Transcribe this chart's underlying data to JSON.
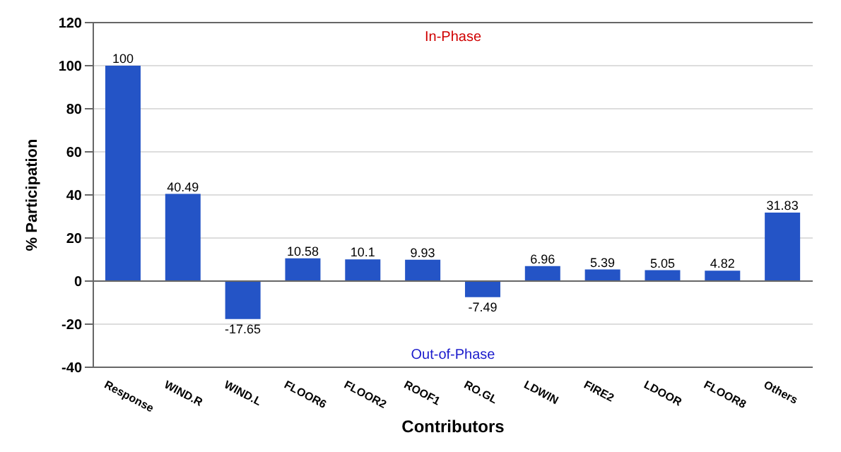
{
  "chart_data": {
    "type": "bar",
    "xlabel": "Contributors",
    "ylabel": "% Participation",
    "categories": [
      "Response",
      "WIND.R",
      "WIND.L",
      "FLOOR6",
      "FLOOR2",
      "ROOF1",
      "RO.GL",
      "LDWIN",
      "FIRE2",
      "LDOOR",
      "FLOOR8",
      "Others"
    ],
    "values": [
      100,
      40.49,
      -17.65,
      10.58,
      10.1,
      9.93,
      -7.49,
      6.96,
      5.39,
      5.05,
      4.82,
      31.83
    ],
    "color": "#2454c6",
    "ylim": [
      -40,
      120
    ],
    "yticks": [
      -40,
      -20,
      0,
      20,
      40,
      60,
      80,
      100,
      120
    ],
    "grid": "y",
    "data_labels": true,
    "annotations": [
      "In-Phase",
      "Out-of-Phase"
    ]
  }
}
